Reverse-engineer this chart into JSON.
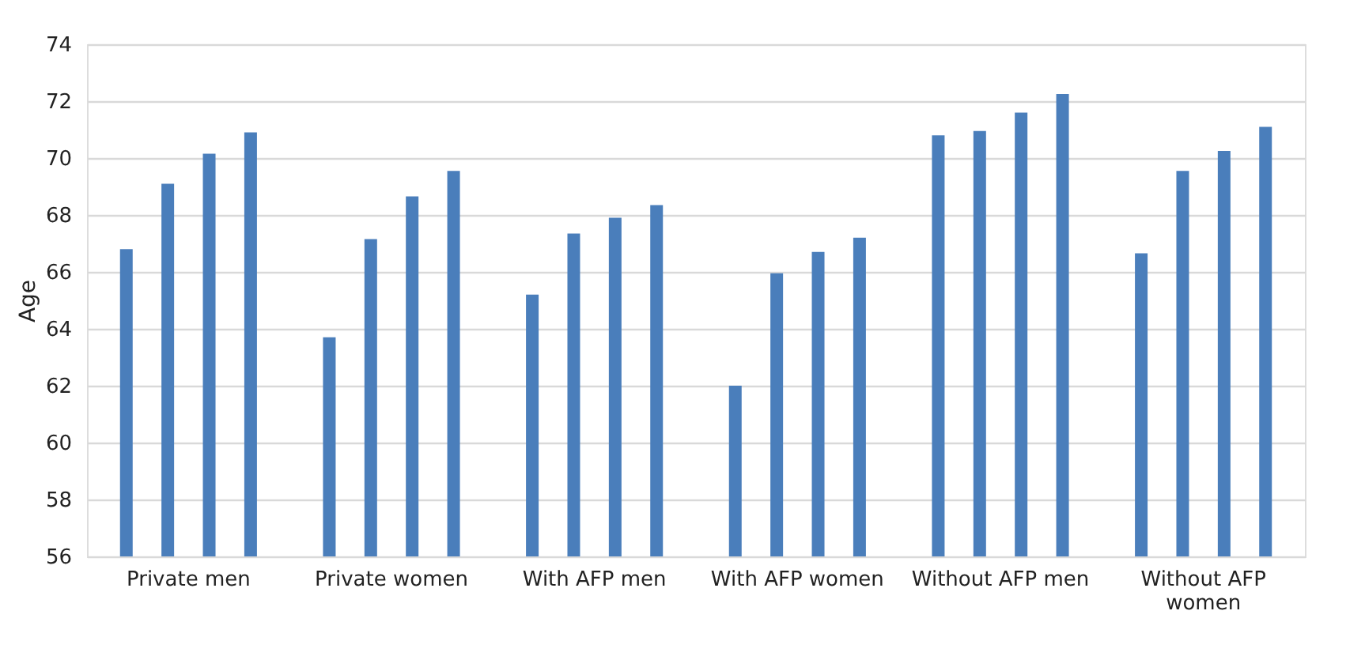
{
  "chart_data": {
    "type": "bar",
    "ylabel": "Age",
    "categories": [
      "Private men",
      "Private women",
      "With AFP men",
      "With AFP women",
      "Without AFP men",
      "Without AFP women"
    ],
    "series": [
      {
        "color": "#4a7ebb",
        "values": [
          66.8,
          63.7,
          65.2,
          62.0,
          70.8,
          66.65
        ]
      },
      {
        "color": "#4a7ebb",
        "values": [
          69.1,
          67.15,
          67.35,
          65.95,
          70.95,
          69.55
        ]
      },
      {
        "color": "#4a7ebb",
        "values": [
          70.15,
          68.65,
          67.9,
          66.7,
          71.6,
          70.25
        ]
      },
      {
        "color": "#4a7ebb",
        "values": [
          70.9,
          69.55,
          68.35,
          67.2,
          72.25,
          71.1
        ]
      }
    ],
    "ylim": [
      56,
      74
    ],
    "yticks": [
      56,
      58,
      60,
      62,
      64,
      66,
      68,
      70,
      72,
      74
    ],
    "grid": "y",
    "legend": false
  }
}
